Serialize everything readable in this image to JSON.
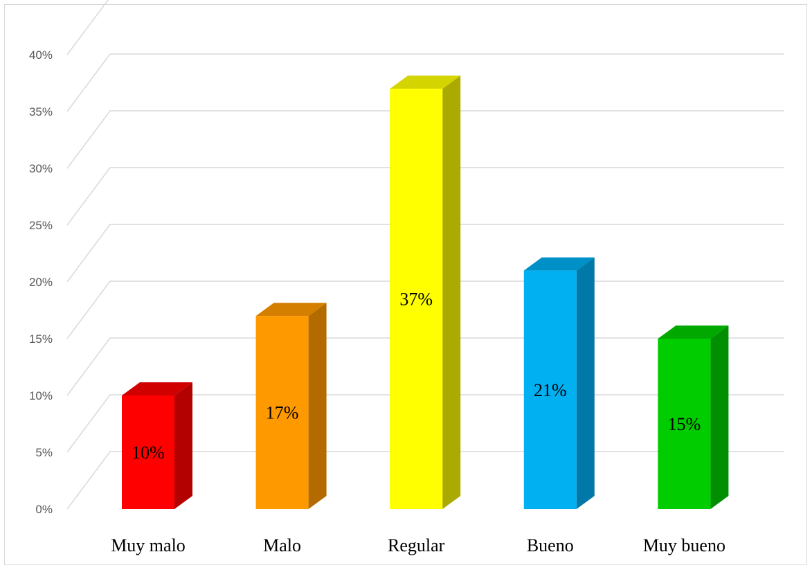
{
  "chart_data": {
    "type": "bar",
    "style": "3d-column",
    "categories": [
      "Muy malo",
      "Malo",
      "Regular",
      "Bueno",
      "Muy bueno"
    ],
    "values": [
      10,
      17,
      37,
      21,
      15
    ],
    "data_labels": [
      "10%",
      "17%",
      "37%",
      "21%",
      "15%"
    ],
    "colors": [
      "#ff0000",
      "#ff9900",
      "#ffff00",
      "#00b0f0",
      "#00cc00"
    ],
    "side_colors": [
      "#b30000",
      "#b36b00",
      "#aaaa00",
      "#0078a8",
      "#008f00"
    ],
    "top_colors": [
      "#d00000",
      "#d47f00",
      "#d4d400",
      "#0090c8",
      "#00a800"
    ],
    "ylim": [
      0,
      40
    ],
    "yticks": [
      "0%",
      "5%",
      "10%",
      "15%",
      "20%",
      "25%",
      "30%",
      "35%",
      "40%"
    ],
    "grid": true,
    "legend": "none",
    "title": "",
    "xlabel": "",
    "ylabel": ""
  }
}
